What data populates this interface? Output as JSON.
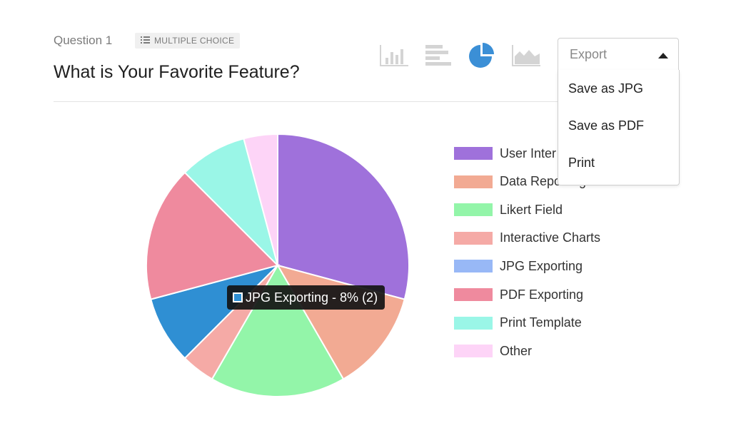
{
  "question": {
    "number_label": "Question 1",
    "type_label": "MULTIPLE CHOICE",
    "title": "What is Your Favorite Feature?"
  },
  "toolbar": {
    "chart_types": [
      "vertical-bar-chart-icon",
      "horizontal-bar-chart-icon",
      "pie-chart-icon",
      "area-chart-icon"
    ],
    "active": "pie-chart-icon",
    "active_color": "#3b8fd6",
    "inactive_color": "#d4d4d4"
  },
  "export": {
    "label": "Export",
    "options": [
      "Save as JPG",
      "Save as PDF",
      "Print"
    ]
  },
  "tooltip": {
    "text": "JPG Exporting - 8% (2)"
  },
  "legend": {
    "partially_hidden_labels": [
      "User Inter",
      "Data Reporting"
    ]
  },
  "chart_data": {
    "type": "pie",
    "labels": [
      "User Interface",
      "Data Reporting",
      "Likert Field",
      "Interactive Charts",
      "JPG Exporting",
      "PDF Exporting",
      "Print Template",
      "Other"
    ],
    "values": [
      7,
      3,
      4,
      1,
      2,
      4,
      2,
      1
    ],
    "colors": [
      "#9f71db",
      "#f2aa93",
      "#93f5a9",
      "#f5aaa6",
      "#2f8fd3",
      "#ef8a9e",
      "#9af6e7",
      "#fdd4f7"
    ],
    "legend_colors": [
      "#9f71db",
      "#f2aa93",
      "#93f5a9",
      "#f5aaa6",
      "#98b8f6",
      "#ef8a9e",
      "#9af6e7",
      "#fdd4f7"
    ],
    "highlighted": "JPG Exporting",
    "legend_position": "right"
  }
}
